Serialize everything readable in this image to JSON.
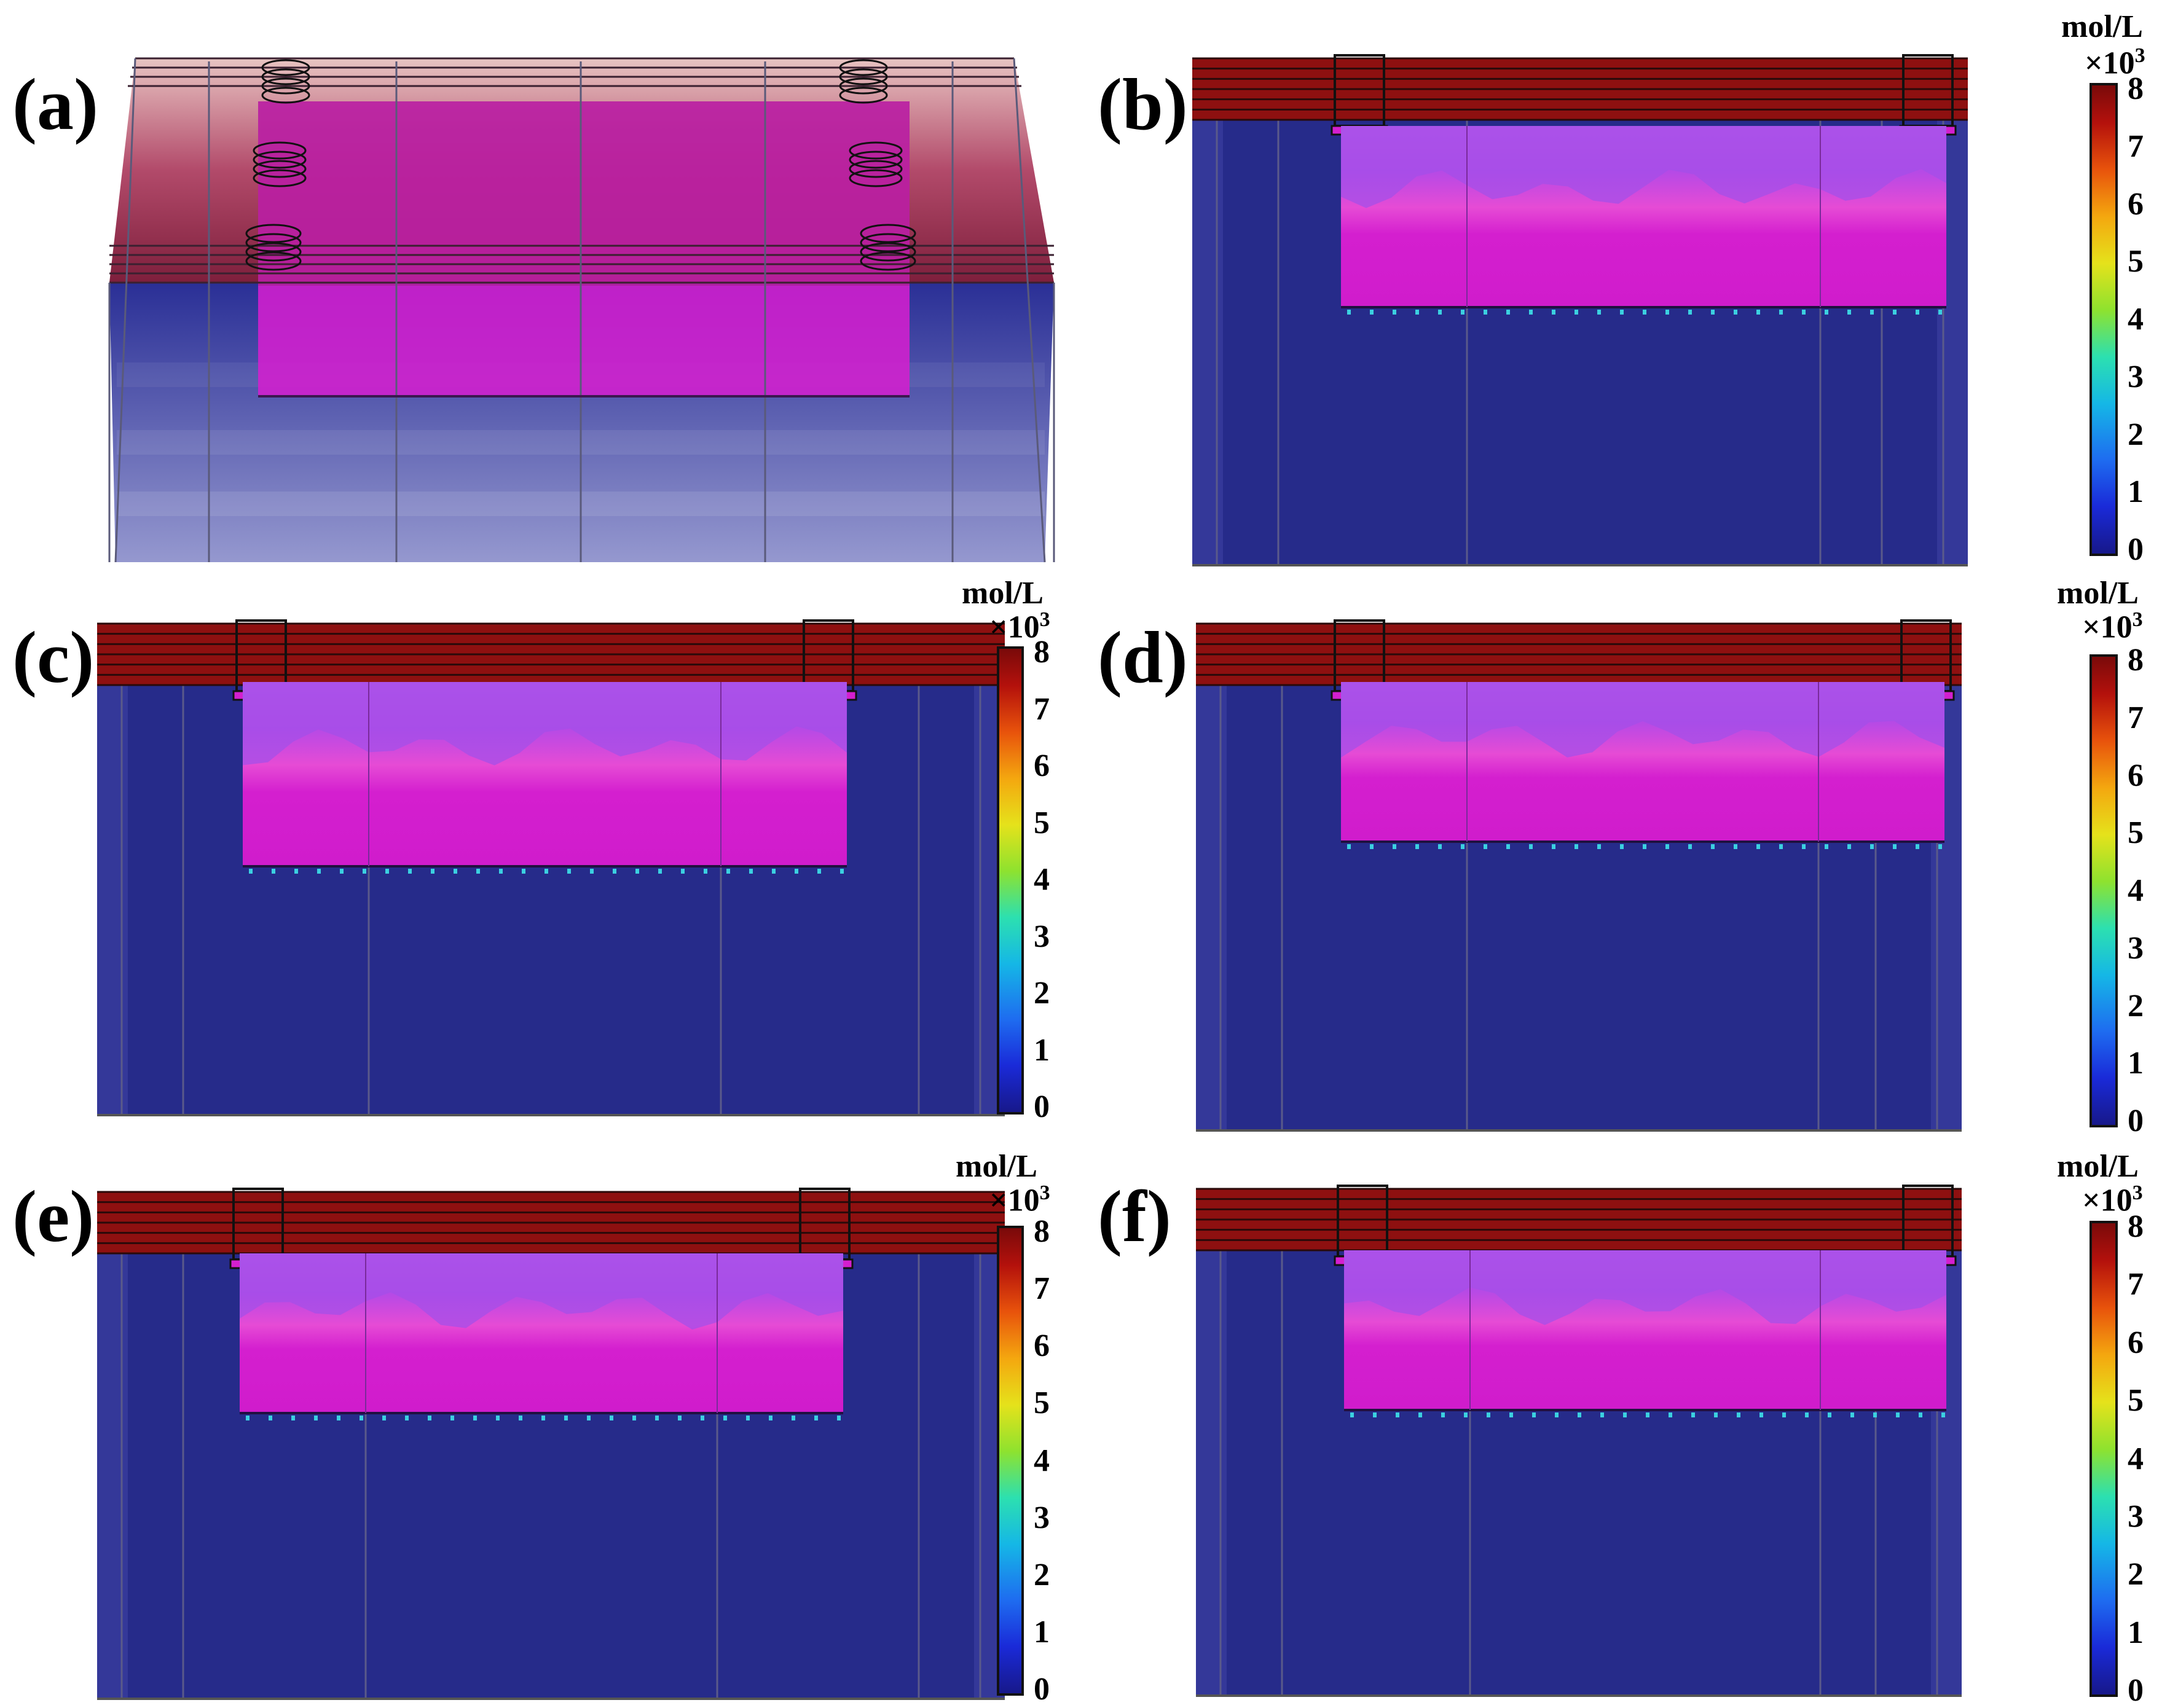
{
  "panels": [
    {
      "id": "a",
      "label": "(a)",
      "view": "3d-isometric"
    },
    {
      "id": "b",
      "label": "(b)",
      "view": "front",
      "colorbar": true
    },
    {
      "id": "c",
      "label": "(c)",
      "view": "front",
      "colorbar": true
    },
    {
      "id": "d",
      "label": "(d)",
      "view": "front",
      "colorbar": true
    },
    {
      "id": "e",
      "label": "(e)",
      "view": "front",
      "colorbar": true
    },
    {
      "id": "f",
      "label": "(f)",
      "view": "front",
      "colorbar": true
    }
  ],
  "colorbar": {
    "unit": "mol/L",
    "multiplier_base": "×10",
    "multiplier_exp": "3",
    "ticks": [
      "8",
      "7",
      "6",
      "5",
      "4",
      "3",
      "2",
      "1",
      "0"
    ],
    "range": [
      0,
      8
    ]
  },
  "colors": {
    "tank_blue": "#262b8a",
    "tank_blue_light": "#8f92c8",
    "electrolyte_magenta": "#d41fcf",
    "top_red": "#8e1010",
    "edge": "#444444"
  }
}
